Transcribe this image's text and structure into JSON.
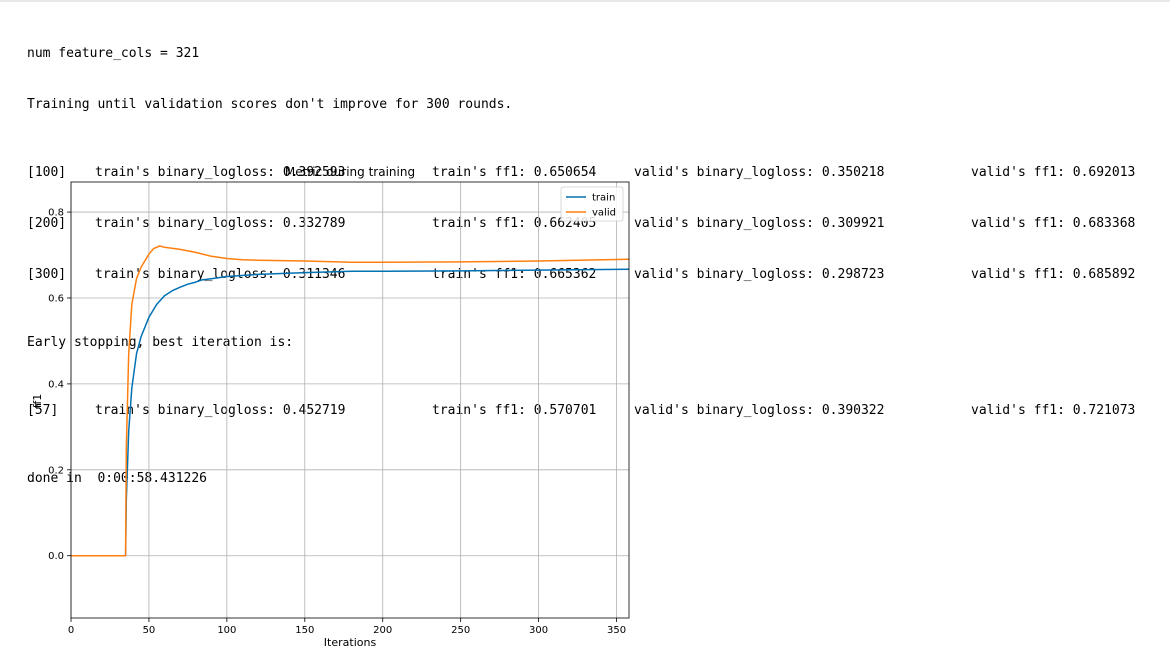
{
  "log": {
    "header_lines": [
      "num feature_cols = 321",
      "Training until validation scores don't improve for 300 rounds."
    ],
    "rows": [
      {
        "iter": "[100]",
        "train_logloss": "train's binary_logloss: 0.392593",
        "train_ff1": "train's ff1: 0.650654",
        "valid_logloss": "valid's binary_logloss: 0.350218",
        "valid_ff1": "valid's ff1: 0.692013"
      },
      {
        "iter": "[200]",
        "train_logloss": "train's binary_logloss: 0.332789",
        "train_ff1": "train's ff1: 0.662405",
        "valid_logloss": "valid's binary_logloss: 0.309921",
        "valid_ff1": "valid's ff1: 0.683368"
      },
      {
        "iter": "[300]",
        "train_logloss": "train's binary_logloss: 0.311346",
        "train_ff1": "train's ff1: 0.665362",
        "valid_logloss": "valid's binary_logloss: 0.298723",
        "valid_ff1": "valid's ff1: 0.685892"
      }
    ],
    "early_stop_line": "Early stopping, best iteration is:",
    "best_row": {
      "iter": "[57]",
      "train_logloss": "train's binary_logloss: 0.452719",
      "train_ff1": "train's ff1: 0.570701",
      "valid_logloss": "valid's binary_logloss: 0.390322",
      "valid_ff1": "valid's ff1: 0.721073"
    },
    "done_line": "done in  0:00:58.431226"
  },
  "chart_data": {
    "type": "line",
    "title": "Metric during training",
    "xlabel": "Iterations",
    "ylabel": "ff1",
    "xlim": [
      0,
      358
    ],
    "ylim": [
      -0.145,
      0.87
    ],
    "x_ticks": [
      0,
      50,
      100,
      150,
      200,
      250,
      300,
      350
    ],
    "y_ticks": [
      0.0,
      0.2,
      0.4,
      0.6,
      0.8
    ],
    "y_tick_labels": [
      "0.0",
      "0.2",
      "0.4",
      "0.6",
      "0.8"
    ],
    "grid": true,
    "legend_placement": "top-right",
    "series": [
      {
        "name": "train",
        "color": "#0072b2",
        "x": [
          0,
          35,
          35.5,
          37,
          39,
          42,
          45,
          50,
          55,
          60,
          65,
          70,
          75,
          80,
          84,
          90,
          100,
          120,
          150,
          180,
          200,
          250,
          300,
          358
        ],
        "y": [
          0,
          0,
          0.13,
          0.29,
          0.39,
          0.47,
          0.51,
          0.555,
          0.585,
          0.605,
          0.617,
          0.625,
          0.632,
          0.637,
          0.642,
          0.645,
          0.65,
          0.655,
          0.659,
          0.662,
          0.662,
          0.663,
          0.665,
          0.667
        ]
      },
      {
        "name": "valid",
        "color": "#ff7f0e",
        "x": [
          0,
          35,
          35.5,
          37,
          39,
          42,
          45,
          50,
          53,
          57,
          60,
          70,
          80,
          90,
          100,
          110,
          120,
          150,
          180,
          200,
          250,
          300,
          358
        ],
        "y": [
          0,
          0,
          0.25,
          0.47,
          0.585,
          0.645,
          0.672,
          0.702,
          0.715,
          0.721,
          0.718,
          0.713,
          0.706,
          0.697,
          0.692,
          0.689,
          0.688,
          0.686,
          0.683,
          0.683,
          0.684,
          0.686,
          0.69
        ]
      }
    ]
  }
}
